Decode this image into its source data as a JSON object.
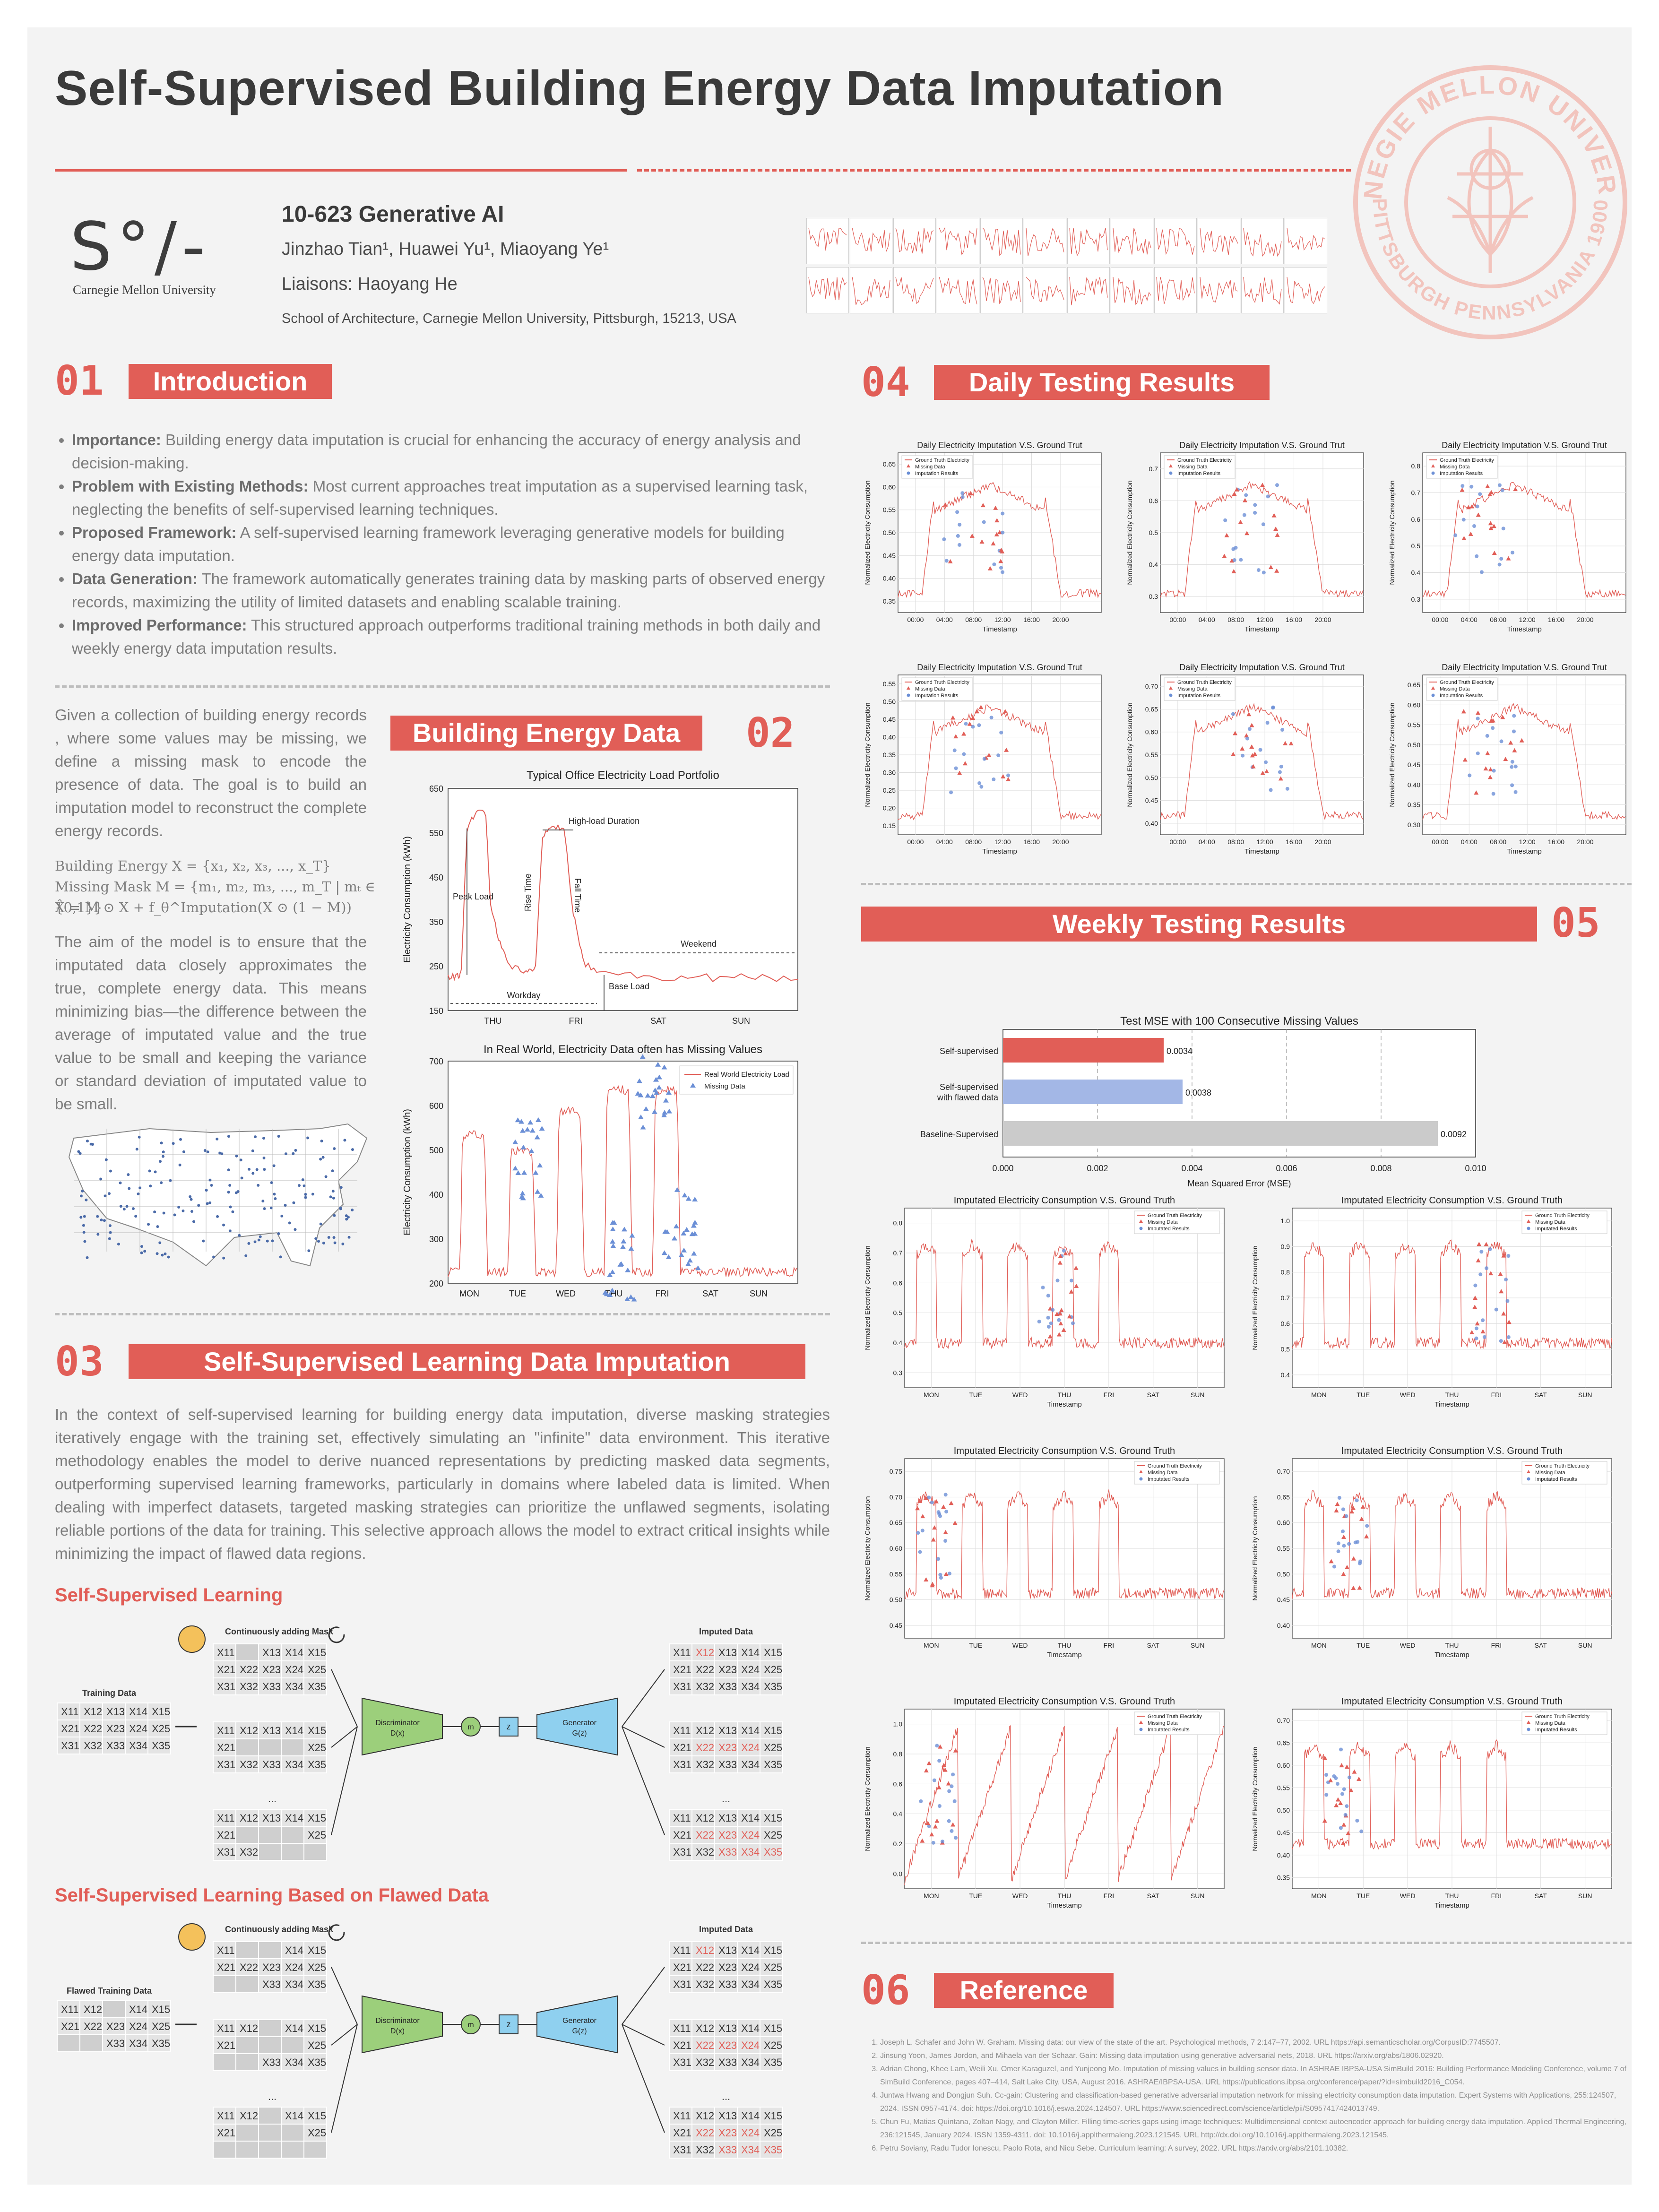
{
  "title": "Self-Supervised Building Energy Data Imputation",
  "course": "10-623 Generative AI",
  "authors": "Jinzhao Tian¹, Huawei Yu¹, Miaoyang Ye¹",
  "liaisons": "Liaisons: Haoyang He",
  "affiliation": "School of Architecture, Carnegie Mellon University, Pittsburgh, 15213, USA",
  "logo": {
    "mark": "S°/-",
    "text": "Carnegie Mellon University"
  },
  "seal": {
    "top": "CARNEGIE MELLON UNIVERSITY",
    "bottom": "PITTSBURGH PENNSYLVANIA 1900"
  },
  "colors": {
    "accent": "#e15e57",
    "blue": "#6b8fd6",
    "gray": "#c9c9c9"
  },
  "s1": {
    "num": "01",
    "title": "Introduction",
    "bullets": [
      {
        "b": "Importance:",
        "t": " Building energy data imputation is crucial for enhancing the accuracy of energy analysis and decision-making."
      },
      {
        "b": "Problem with Existing Methods:",
        "t": " Most current approaches treat imputation as a supervised learning task, neglecting the benefits of self-supervised learning techniques."
      },
      {
        "b": "Proposed Framework:",
        "t": " A self-supervised learning framework leveraging generative models for building energy data imputation."
      },
      {
        "b": "Data Generation:",
        "t": " The framework automatically generates training data by masking parts of observed energy records, maximizing the utility of limited datasets and enabling scalable training."
      },
      {
        "b": "Improved Performance:",
        "t": " This structured approach outperforms traditional training methods in both daily and weekly energy data imputation results."
      }
    ]
  },
  "s2": {
    "num": "02",
    "title": "Building Energy Data",
    "p1": "Given a collection of building energy records , where some values may be missing, we define a missing mask to encode the presence of data. The goal is to build an imputation model to reconstruct the complete energy records.",
    "eq1": "Building Energy X = {x₁, x₂, x₃, ..., x_T}",
    "eq2": "Missing Mask M = {m₁, m₂, m₃, ..., m_T | mₜ ∈ {0,1}}",
    "eq3": "X̂ = M ⊙ X + f_θ^Imputation(X ⊙ (1 − M))",
    "p2": "The aim of the model is to ensure that the imputated data closely approximates the true, complete energy data. This means minimizing bias—the difference between the average of imputated value and the true value to be small and keeping the variance or standard deviation of imputated value to be small."
  },
  "chart_data": [
    {
      "type": "line",
      "title": "Typical Office Electricity Load Portfolio",
      "ylabel": "Electricity Consumption (kWh)",
      "categories": [
        "THU",
        "FRI",
        "SAT",
        "SUN"
      ],
      "ylim": [
        150,
        650
      ],
      "yticks": [
        150,
        250,
        350,
        450,
        550,
        650
      ],
      "annotations": [
        "High-load Duration",
        "Peak Load",
        "Rise Time",
        "Fall Time",
        "Weekend",
        "Workday",
        "Base Load"
      ]
    },
    {
      "type": "line",
      "title": "In Real World, Electricity Data often has Missing Values",
      "ylabel": "Electricity Consumption (kWh)",
      "categories": [
        "MON",
        "TUE",
        "WED",
        "THU",
        "FRI",
        "SAT",
        "SUN"
      ],
      "ylim": [
        200,
        700
      ],
      "yticks": [
        200,
        300,
        400,
        500,
        600,
        700
      ],
      "series": [
        {
          "name": "Real World Electricity Load"
        },
        {
          "name": "Missing Data"
        }
      ]
    },
    {
      "type": "bar",
      "title": "Test MSE with 100 Consecutive Missing Values",
      "xlabel": "Mean Squared Error (MSE)",
      "xlim": [
        0,
        0.01
      ],
      "xticks": [
        "0.000",
        "0.002",
        "0.004",
        "0.006",
        "0.008",
        "0.010"
      ],
      "categories": [
        "Self-supervised",
        "Self-supervised with flawed data",
        "Baseline-Supervised"
      ],
      "values": [
        0.0034,
        0.0038,
        0.0092
      ],
      "labels": [
        "0.0034",
        "0.0038",
        "0.0092"
      ]
    },
    {
      "type": "line",
      "group": "daily",
      "count": 6,
      "title": "Daily Electricity Imputation V.S. Ground Trut",
      "xlabel": "Timestamp",
      "ylabel": "Normalized Electricity Consumption",
      "xticks": [
        "00:00",
        "04:00",
        "08:00",
        "12:00",
        "16:00",
        "20:00"
      ],
      "series": [
        {
          "name": "Ground Truth Electricity"
        },
        {
          "name": "Missing Data"
        },
        {
          "name": "Imputation Results"
        }
      ]
    },
    {
      "type": "line",
      "group": "weekly",
      "count": 6,
      "title": "Imputated Electricity  Consumption V.S. Ground Truth",
      "xlabel": "Timestamp",
      "ylabel": "Normalized Electricity Consumption",
      "xticks": [
        "MON",
        "TUE",
        "WED",
        "THU",
        "FRI",
        "SAT",
        "SUN"
      ],
      "series": [
        {
          "name": "Ground Truth Electricity"
        },
        {
          "name": "Missing Data"
        },
        {
          "name": "Imputated Results"
        }
      ]
    }
  ],
  "daily_yticks": [
    [
      "0.35",
      "0.40",
      "0.45",
      "0.50",
      "0.55",
      "0.60",
      "0.65"
    ],
    [
      "0.3",
      "0.4",
      "0.5",
      "0.6",
      "0.7"
    ],
    [
      "0.3",
      "0.4",
      "0.5",
      "0.6",
      "0.7",
      "0.8"
    ],
    [
      "0.15",
      "0.20",
      "0.25",
      "0.30",
      "0.35",
      "0.40",
      "0.45",
      "0.50",
      "0.55"
    ],
    [
      "0.40",
      "0.45",
      "0.50",
      "0.55",
      "0.60",
      "0.65",
      "0.70"
    ],
    [
      "0.30",
      "0.35",
      "0.40",
      "0.45",
      "0.50",
      "0.55",
      "0.60",
      "0.65"
    ]
  ],
  "weekly_yticks": [
    [
      "0.3",
      "0.4",
      "0.5",
      "0.6",
      "0.7",
      "0.8"
    ],
    [
      "0.4",
      "0.5",
      "0.6",
      "0.7",
      "0.8",
      "0.9",
      "1.0"
    ],
    [
      "0.45",
      "0.50",
      "0.55",
      "0.60",
      "0.65",
      "0.70",
      "0.75"
    ],
    [
      "0.40",
      "0.45",
      "0.50",
      "0.55",
      "0.60",
      "0.65",
      "0.70"
    ],
    [
      "0.0",
      "0.2",
      "0.4",
      "0.6",
      "0.8",
      "1.0"
    ],
    [
      "0.35",
      "0.40",
      "0.45",
      "0.50",
      "0.55",
      "0.60",
      "0.65",
      "0.70"
    ]
  ],
  "s3": {
    "num": "03",
    "title": "Self-Supervised Learning Data Imputation",
    "p": "In the context of self-supervised learning for building energy data imputation, diverse masking strategies iteratively engage with the training set, effectively simulating an \"infinite\" data environment. This iterative methodology enables the model to derive nuanced representations by predicting masked data segments, outperforming supervised learning frameworks, particularly in domains where labeled data is limited. When dealing with imperfect datasets, targeted masking strategies can prioritize the unflawed segments, isolating reliable portions of the data for training. This selective approach allows the model to extract critical insights  while minimizing the impact of flawed data regions.",
    "sub1": "Self-Supervised Learning",
    "sub2": "Self-Supervised Learning Based on Flawed Data",
    "mask_label": "Continuously adding Mask",
    "imputed_label": "Imputed Data",
    "training_label": "Training Data",
    "flawed_label": "Flawed Training Data",
    "disc": "Discriminator",
    "disc_fn": "D(x)",
    "gen": "Generator",
    "gen_fn": "G(z)",
    "z": "z",
    "m": "m",
    "ellipsis": "..."
  },
  "s4": {
    "num": "04",
    "title": "Daily Testing Results"
  },
  "s5": {
    "num": "05",
    "title": "Weekly Testing Results"
  },
  "s6": {
    "num": "06",
    "title": "Reference",
    "refs": [
      "Joseph L. Schafer and John W. Graham. Missing data: our view of the state of the art. Psychological methods, 7 2:147–77, 2002. URL https://api.semanticscholar.org/CorpusID:7745507.",
      "Jinsung Yoon, James Jordon, and Mihaela van der Schaar. Gain: Missing data imputation using generative adversarial nets, 2018. URL https://arxiv.org/abs/1806.02920.",
      "Adrian Chong, Khee Lam, Weili Xu, Omer Karaguzel, and Yunjeong Mo. Imputation of missing values in building sensor data. In ASHRAE IBPSA-USA SimBuild 2016: Building Performance Modeling Conference, volume 7 of SimBuild Conference, pages 407–414, Salt Lake City, USA, August 2016. ASHRAE/IBPSA-USA. URL https://publications.ibpsa.org/conference/paper/?id=simbuild2016_C054.",
      "Juntwa Hwang and Dongjun Suh. Cc-gain: Clustering and classification-based generative adversarial imputation network for missing electricity consumption data imputation. Expert Systems with Applications, 255:124507, 2024. ISSN 0957-4174. doi: https://doi.org/10.1016/j.eswa.2024.124507. URL https://www.sciencedirect.com/science/article/pii/S0957417424013749.",
      "Chun Fu, Matias Quintana, Zoltan Nagy, and Clayton Miller. Filling time-series gaps using image techniques: Multidimensional context autoencoder approach for building energy data imputation. Applied Thermal Engineering, 236:121545, January 2024. ISSN 1359-4311. doi: 10.1016/j.applthermaleng.2023.121545. URL http://dx.doi.org/10.1016/j.applthermaleng.2023.121545.",
      "Petru Soviany, Radu Tudor Ionescu, Paolo Rota, and Nicu Sebe. Curriculum learning: A survey, 2022. URL https://arxiv.org/abs/2101.10382."
    ]
  }
}
